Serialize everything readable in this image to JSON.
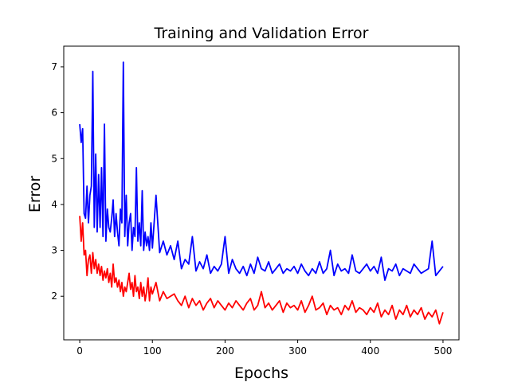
{
  "chart_data": {
    "type": "line",
    "title": "Training and Validation Error",
    "xlabel": "Epochs",
    "ylabel": "Error",
    "xlim": [
      -22,
      522
    ],
    "ylim": [
      1.05,
      7.45
    ],
    "xticks": [
      0,
      100,
      200,
      300,
      400,
      500
    ],
    "yticks": [
      2,
      3,
      4,
      5,
      6,
      7
    ],
    "grid": false,
    "series": [
      {
        "color": "#0000ff",
        "x": [
          0,
          2,
          4,
          6,
          8,
          10,
          12,
          14,
          16,
          18,
          20,
          22,
          24,
          26,
          28,
          30,
          32,
          34,
          36,
          38,
          40,
          42,
          44,
          46,
          48,
          50,
          52,
          54,
          56,
          58,
          60,
          62,
          64,
          66,
          68,
          70,
          72,
          74,
          76,
          78,
          80,
          82,
          84,
          86,
          88,
          90,
          92,
          94,
          96,
          98,
          100,
          105,
          110,
          115,
          120,
          125,
          130,
          135,
          140,
          145,
          150,
          155,
          160,
          165,
          170,
          175,
          180,
          185,
          190,
          195,
          200,
          205,
          210,
          215,
          220,
          225,
          230,
          235,
          240,
          245,
          250,
          255,
          260,
          265,
          270,
          275,
          280,
          285,
          290,
          295,
          300,
          305,
          310,
          315,
          320,
          325,
          330,
          335,
          340,
          345,
          350,
          355,
          360,
          365,
          370,
          375,
          380,
          385,
          390,
          395,
          400,
          405,
          410,
          415,
          420,
          425,
          430,
          435,
          440,
          445,
          450,
          455,
          460,
          465,
          470,
          475,
          480,
          485,
          490,
          495,
          500
        ],
        "values": [
          5.75,
          5.35,
          5.65,
          3.8,
          3.7,
          4.4,
          3.6,
          4.2,
          4.4,
          6.9,
          3.5,
          5.1,
          3.4,
          4.65,
          3.5,
          4.8,
          3.3,
          5.75,
          3.2,
          3.9,
          3.5,
          3.4,
          3.7,
          4.1,
          3.3,
          3.8,
          3.4,
          3.1,
          3.9,
          3.6,
          7.1,
          3.3,
          4.2,
          3.1,
          3.6,
          3.8,
          3.0,
          3.5,
          3.3,
          4.8,
          3.2,
          3.6,
          3.1,
          4.3,
          3.0,
          3.4,
          3.1,
          3.3,
          3.0,
          3.6,
          3.05,
          4.2,
          2.95,
          3.2,
          2.9,
          3.1,
          2.8,
          3.2,
          2.6,
          2.8,
          2.7,
          3.3,
          2.55,
          2.75,
          2.6,
          2.9,
          2.5,
          2.65,
          2.55,
          2.7,
          3.3,
          2.5,
          2.8,
          2.6,
          2.5,
          2.65,
          2.45,
          2.7,
          2.5,
          2.85,
          2.6,
          2.55,
          2.75,
          2.5,
          2.6,
          2.7,
          2.5,
          2.6,
          2.55,
          2.65,
          2.5,
          2.7,
          2.55,
          2.45,
          2.6,
          2.5,
          2.75,
          2.5,
          2.6,
          3.0,
          2.45,
          2.7,
          2.55,
          2.6,
          2.5,
          2.9,
          2.55,
          2.5,
          2.6,
          2.7,
          2.55,
          2.65,
          2.5,
          2.85,
          2.35,
          2.6,
          2.55,
          2.7,
          2.45,
          2.6,
          2.55,
          2.5,
          2.7,
          2.6,
          2.5,
          2.55,
          2.6,
          3.2,
          2.45,
          2.55,
          2.65
        ]
      },
      {
        "color": "#ff0000",
        "x": [
          0,
          2,
          4,
          6,
          8,
          10,
          12,
          14,
          16,
          18,
          20,
          22,
          24,
          26,
          28,
          30,
          32,
          34,
          36,
          38,
          40,
          42,
          44,
          46,
          48,
          50,
          52,
          54,
          56,
          58,
          60,
          62,
          64,
          66,
          68,
          70,
          72,
          74,
          76,
          78,
          80,
          82,
          84,
          86,
          88,
          90,
          92,
          94,
          96,
          98,
          100,
          105,
          110,
          115,
          120,
          125,
          130,
          135,
          140,
          145,
          150,
          155,
          160,
          165,
          170,
          175,
          180,
          185,
          190,
          195,
          200,
          205,
          210,
          215,
          220,
          225,
          230,
          235,
          240,
          245,
          250,
          255,
          260,
          265,
          270,
          275,
          280,
          285,
          290,
          295,
          300,
          305,
          310,
          315,
          320,
          325,
          330,
          335,
          340,
          345,
          350,
          355,
          360,
          365,
          370,
          375,
          380,
          385,
          390,
          395,
          400,
          405,
          410,
          415,
          420,
          425,
          430,
          435,
          440,
          445,
          450,
          455,
          460,
          465,
          470,
          475,
          480,
          485,
          490,
          495,
          500
        ],
        "values": [
          3.75,
          3.2,
          3.6,
          2.9,
          3.0,
          2.45,
          2.8,
          2.9,
          2.5,
          2.95,
          2.6,
          2.8,
          2.5,
          2.7,
          2.45,
          2.65,
          2.35,
          2.55,
          2.4,
          2.6,
          2.3,
          2.5,
          2.2,
          2.7,
          2.3,
          2.4,
          2.2,
          2.35,
          2.1,
          2.3,
          2.0,
          2.2,
          2.1,
          2.3,
          2.5,
          2.15,
          2.3,
          2.0,
          2.45,
          2.1,
          2.2,
          1.95,
          2.3,
          2.0,
          2.2,
          1.9,
          2.1,
          2.4,
          1.9,
          2.2,
          2.05,
          2.3,
          1.9,
          2.1,
          1.95,
          2.0,
          2.05,
          1.9,
          1.8,
          2.0,
          1.75,
          1.95,
          1.8,
          1.9,
          1.7,
          1.85,
          1.95,
          1.75,
          1.9,
          1.8,
          1.7,
          1.85,
          1.75,
          1.9,
          1.8,
          1.7,
          1.85,
          1.95,
          1.7,
          1.8,
          2.1,
          1.75,
          1.85,
          1.7,
          1.8,
          1.9,
          1.65,
          1.85,
          1.75,
          1.8,
          1.7,
          1.9,
          1.65,
          1.8,
          2.0,
          1.7,
          1.75,
          1.85,
          1.6,
          1.8,
          1.7,
          1.75,
          1.6,
          1.8,
          1.7,
          1.9,
          1.65,
          1.75,
          1.7,
          1.6,
          1.75,
          1.65,
          1.85,
          1.55,
          1.7,
          1.6,
          1.8,
          1.5,
          1.7,
          1.6,
          1.8,
          1.55,
          1.7,
          1.6,
          1.75,
          1.5,
          1.65,
          1.55,
          1.7,
          1.4,
          1.65
        ]
      }
    ]
  }
}
